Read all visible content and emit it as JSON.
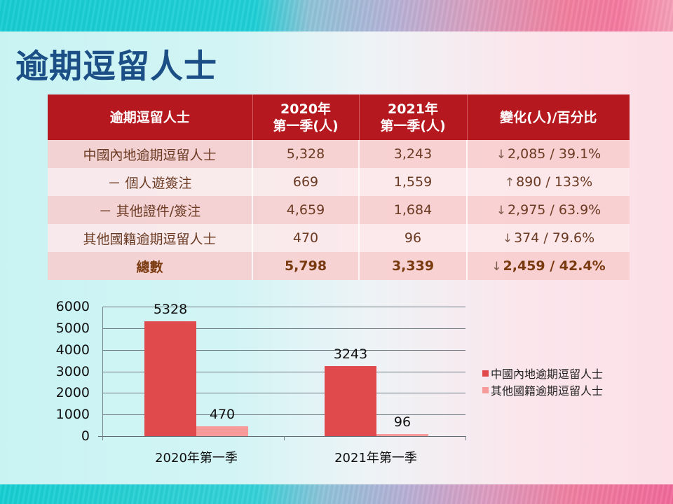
{
  "slide": {
    "title": "逾期逗留人士",
    "colors": {
      "title": "#1b4f86",
      "table_header_bg": "#b5191f",
      "row_dark": "#f8cdce",
      "row_light": "#fce8ea",
      "series_mainland": "#e04a4d",
      "series_other": "#f69b9a"
    }
  },
  "table": {
    "headers": [
      {
        "line1": "逾期逗留人士",
        "line2": ""
      },
      {
        "line1": "2020年",
        "line2": "第一季(人)"
      },
      {
        "line1": "2021年",
        "line2": "第一季(人)"
      },
      {
        "line1": "變化(人)/百分比",
        "line2": ""
      }
    ],
    "rows": [
      {
        "category": "中國內地逾期逗留人士",
        "q1_2020": "5,328",
        "q1_2021": "3,243",
        "arrow": "↓",
        "change": "2,085 / 39.1%"
      },
      {
        "category": "－ 個人遊簽注",
        "q1_2020": "669",
        "q1_2021": "1,559",
        "arrow": "↑",
        "change": "890 / 133%"
      },
      {
        "category": "－ 其他證件/簽注",
        "q1_2020": "4,659",
        "q1_2021": "1,684",
        "arrow": "↓",
        "change": "2,975 / 63.9%"
      },
      {
        "category": "其他國籍逾期逗留人士",
        "q1_2020": "470",
        "q1_2021": "96",
        "arrow": "↓",
        "change": "374 / 79.6%"
      },
      {
        "category": "總數",
        "q1_2020": "5,798",
        "q1_2021": "3,339",
        "arrow": "↓",
        "change": "2,459 / 42.4%"
      }
    ]
  },
  "chart_data": {
    "type": "bar",
    "title": "",
    "xlabel": "",
    "ylabel": "",
    "categories": [
      "2020年第一季",
      "2021年第一季"
    ],
    "series": [
      {
        "name": "中國內地逾期逗留人士",
        "values": [
          5328,
          3243
        ],
        "color": "#e04a4d"
      },
      {
        "name": "其他國籍逾期逗留人士",
        "values": [
          470,
          96
        ],
        "color": "#f69b9a"
      }
    ],
    "data_labels": [
      [
        "5328",
        "3243"
      ],
      [
        "470",
        "96"
      ]
    ],
    "yticks": [
      "6000",
      "5000",
      "4000",
      "3000",
      "2000",
      "1000",
      "0"
    ],
    "ylim": [
      0,
      6000
    ],
    "grid": true,
    "legend_position": "right"
  }
}
